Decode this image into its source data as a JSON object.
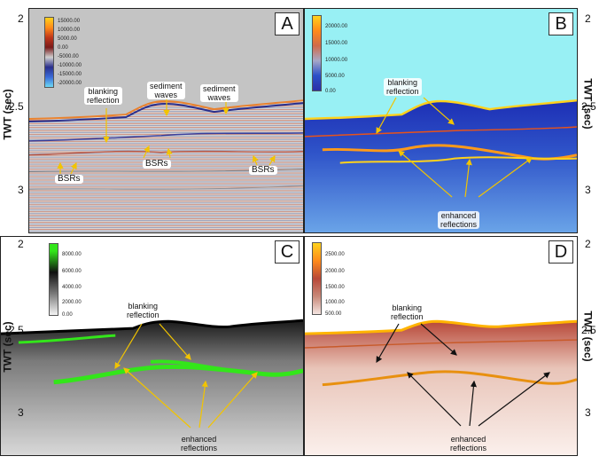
{
  "panels": {
    "a": {
      "letter": "A",
      "colorbar": [
        "15000.00",
        "10000.00",
        "5000.00",
        "0.00",
        "-5000.00",
        "-10000.00",
        "-15000.00",
        "-20000.00"
      ],
      "labels": {
        "blanking_1": "blanking",
        "blanking_2": "reflection",
        "sediment1_1": "sediment",
        "sediment1_2": "waves",
        "sediment2_1": "sediment",
        "sediment2_2": "waves",
        "bsrs_left": "BSRs",
        "bsrs_mid": "BSRs",
        "bsrs_right": "BSRs"
      }
    },
    "b": {
      "letter": "B",
      "colorbar": [
        "20000.00",
        "15000.00",
        "10000.00",
        "5000.00",
        "0.00"
      ],
      "labels": {
        "blanking_1": "blanking",
        "blanking_2": "reflection",
        "enhanced_1": "enhanced",
        "enhanced_2": "reflections"
      }
    },
    "c": {
      "letter": "C",
      "colorbar": [
        "8000.00",
        "6000.00",
        "4000.00",
        "2000.00",
        "0.00"
      ],
      "labels": {
        "blanking_1": "blanking",
        "blanking_2": "reflection",
        "enhanced_1": "enhanced",
        "enhanced_2": "reflections"
      }
    },
    "d": {
      "letter": "D",
      "colorbar": [
        "2500.00",
        "2000.00",
        "1500.00",
        "1000.00",
        "500.00"
      ],
      "labels": {
        "blanking_1": "blanking",
        "blanking_2": "reflection",
        "enhanced_1": "enhanced",
        "enhanced_2": "reflections"
      }
    }
  },
  "axes": {
    "left_label": "TWT (sec)",
    "right_label": "TWT (sec)",
    "ticks": [
      "2",
      "2.5",
      "3"
    ]
  }
}
